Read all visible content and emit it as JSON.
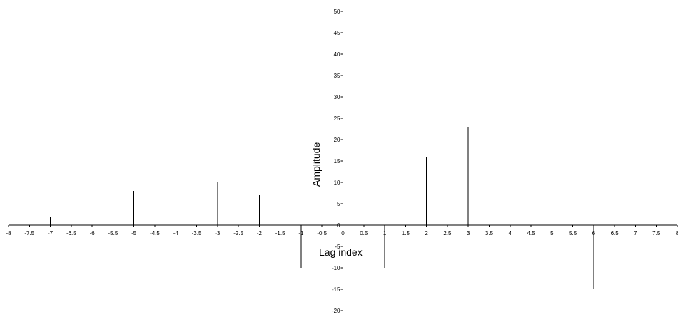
{
  "chart_data": {
    "type": "stem",
    "title": "",
    "xlabel": "Lag index",
    "ylabel": "Amplitude",
    "xlim": [
      -8,
      8
    ],
    "ylim": [
      -20,
      50
    ],
    "x_ticks": [
      -8,
      -7.5,
      -7,
      -6.5,
      -6,
      -5.5,
      -5,
      -4.5,
      -4,
      -3.5,
      -3,
      -2.5,
      -2,
      -1.5,
      -1,
      -0.5,
      0,
      0.5,
      1,
      1.5,
      2,
      2.5,
      3,
      3.5,
      4,
      4.5,
      5,
      5.5,
      6,
      6.5,
      7,
      7.5,
      8
    ],
    "y_ticks": [
      -20,
      -15,
      -10,
      -5,
      0,
      5,
      10,
      15,
      20,
      25,
      30,
      35,
      40,
      45,
      50
    ],
    "x": [
      -7,
      -6,
      -5,
      -4,
      -3,
      -2,
      -1,
      0,
      1,
      2,
      3,
      4,
      5,
      6,
      7
    ],
    "values": [
      2,
      0,
      8,
      0,
      10,
      7,
      -10,
      0,
      -10,
      16,
      23,
      0,
      16,
      -15,
      0
    ],
    "grid": false,
    "line_color": "#000000"
  }
}
